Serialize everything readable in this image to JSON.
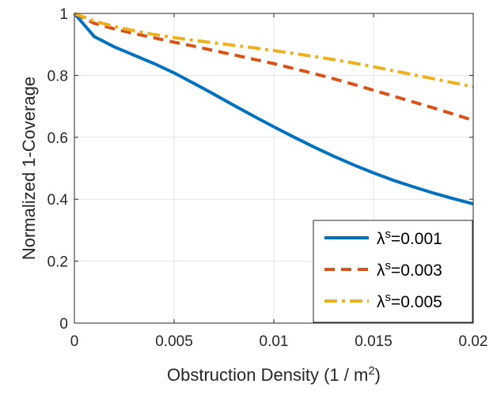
{
  "chart_data": {
    "type": "line",
    "xlabel": "Obstruction Density (1 / m",
    "xlabel_sup": "2",
    "xlabel_end": ")",
    "ylabel": "Normalized 1-Coverage",
    "xlim": [
      0,
      0.02
    ],
    "ylim": [
      0,
      1
    ],
    "x_ticks": [
      0,
      0.005,
      0.01,
      0.015,
      0.02
    ],
    "x_tick_labels": [
      "0",
      "0.005",
      "0.01",
      "0.015",
      "0.02"
    ],
    "y_ticks": [
      0,
      0.2,
      0.4,
      0.6,
      0.8,
      1
    ],
    "y_tick_labels": [
      "0",
      "0.2",
      "0.4",
      "0.6",
      "0.8",
      "1"
    ],
    "grid": true,
    "legend_position": "bottom-right",
    "series": [
      {
        "name_base": "λ",
        "name_sup": "s",
        "name_rest": "=0.001",
        "color": "#0072BD",
        "dash": "solid",
        "x": [
          0,
          0.001,
          0.002,
          0.003,
          0.004,
          0.005,
          0.006,
          0.007,
          0.008,
          0.009,
          0.01,
          0.011,
          0.012,
          0.013,
          0.014,
          0.015,
          0.016,
          0.017,
          0.018,
          0.019,
          0.02
        ],
        "y": [
          1.0,
          0.925,
          0.892,
          0.865,
          0.838,
          0.808,
          0.774,
          0.739,
          0.703,
          0.668,
          0.634,
          0.601,
          0.569,
          0.539,
          0.511,
          0.485,
          0.461,
          0.44,
          0.42,
          0.402,
          0.385
        ]
      },
      {
        "name_base": "λ",
        "name_sup": "s",
        "name_rest": "=0.003",
        "color": "#D95319",
        "dash": "dashed",
        "x": [
          0,
          0.001,
          0.002,
          0.003,
          0.004,
          0.005,
          0.006,
          0.007,
          0.008,
          0.009,
          0.01,
          0.011,
          0.012,
          0.013,
          0.014,
          0.015,
          0.016,
          0.017,
          0.018,
          0.019,
          0.02
        ],
        "y": [
          1.0,
          0.968,
          0.95,
          0.935,
          0.921,
          0.907,
          0.894,
          0.88,
          0.866,
          0.852,
          0.838,
          0.822,
          0.806,
          0.789,
          0.771,
          0.752,
          0.733,
          0.714,
          0.695,
          0.675,
          0.655
        ]
      },
      {
        "name_base": "λ",
        "name_sup": "s",
        "name_rest": "=0.005",
        "color": "#EDB120",
        "dash": "dashdot",
        "x": [
          0,
          0.001,
          0.002,
          0.003,
          0.004,
          0.005,
          0.006,
          0.007,
          0.008,
          0.009,
          0.01,
          0.011,
          0.012,
          0.013,
          0.014,
          0.015,
          0.016,
          0.017,
          0.018,
          0.019,
          0.02
        ],
        "y": [
          1.0,
          0.975,
          0.958,
          0.944,
          0.932,
          0.922,
          0.913,
          0.905,
          0.897,
          0.889,
          0.88,
          0.871,
          0.861,
          0.851,
          0.84,
          0.828,
          0.815,
          0.802,
          0.789,
          0.776,
          0.763
        ]
      }
    ]
  }
}
